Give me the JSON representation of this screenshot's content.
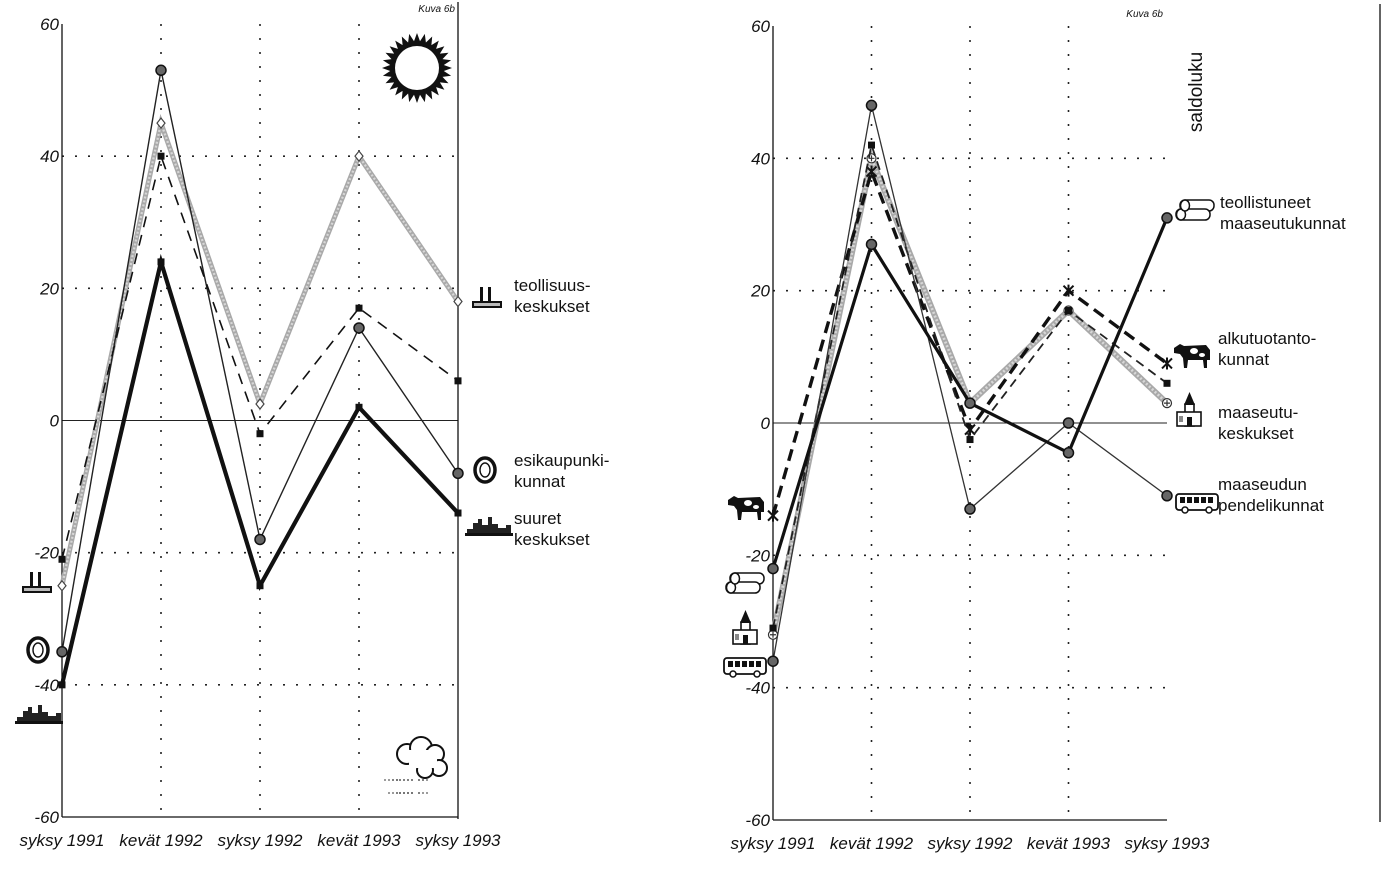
{
  "chart_data": [
    {
      "type": "line",
      "figure_tag": "Kuva 6b",
      "categories": [
        "syksy 1991",
        "kevät 1992",
        "syksy 1992",
        "kevät 1993",
        "syksy 1993"
      ],
      "y_ticks": [
        "60",
        "40",
        "20",
        "0",
        "-20",
        "-40",
        "-60"
      ],
      "ylim": [
        -60,
        60
      ],
      "grid": "dotted",
      "ylabel": "",
      "series": [
        {
          "key": "teollisuus",
          "values": [
            -25,
            45,
            2.5,
            40,
            18
          ],
          "color": "#9a9a9a"
        },
        {
          "key": "esikaupunki",
          "values": [
            -35,
            53,
            -18,
            14,
            -8
          ],
          "color": "#222222"
        },
        {
          "key": "suuret",
          "values": [
            -40,
            24,
            -25,
            2,
            -14
          ],
          "color": "#111111"
        },
        {
          "key": "dashed",
          "values": [
            -21,
            40,
            -2,
            17,
            6
          ],
          "color": "#111111"
        }
      ],
      "labels": [
        {
          "key": "teollisuus",
          "lines": [
            "teollisuus-",
            "keskukset"
          ]
        },
        {
          "key": "esikaupunki",
          "lines": [
            "esikaupunki-",
            "kunnat"
          ]
        },
        {
          "key": "suuret",
          "lines": [
            "suuret",
            "keskukset"
          ]
        }
      ],
      "icons": [
        "sun-icon",
        "rain-cloud-icon",
        "factory-icon",
        "ring-icon",
        "skyline-icon"
      ]
    },
    {
      "type": "line",
      "figure_tag": "Kuva 6b",
      "categories": [
        "syksy 1991",
        "kevät 1992",
        "syksy 1992",
        "kevät 1993",
        "syksy 1993"
      ],
      "y_ticks": [
        "60",
        "40",
        "20",
        "0",
        "-20",
        "-40",
        "-60"
      ],
      "ylim": [
        -60,
        60
      ],
      "grid": "dotted",
      "ylabel": "saldoluku",
      "series": [
        {
          "key": "teollistuneet",
          "values": [
            -32,
            40,
            3,
            17,
            3
          ],
          "color": "#9a9a9a"
        },
        {
          "key": "alkutuotanto",
          "values": [
            -14,
            38,
            -1,
            20,
            9
          ],
          "color": "#111111"
        },
        {
          "key": "maaseutukeskukset",
          "values": [
            -31,
            42,
            -2.5,
            17,
            6
          ],
          "color": "#333333"
        },
        {
          "key": "pendeli",
          "values": [
            -36,
            48,
            -13,
            0,
            -11
          ],
          "color": "#333333"
        },
        {
          "key": "bold",
          "values": [
            -22,
            27,
            3,
            -4.5,
            31
          ],
          "color": "#111111"
        }
      ],
      "labels": [
        {
          "key": "teollistuneet",
          "lines": [
            "teollistuneet",
            "maaseutukunnat"
          ]
        },
        {
          "key": "alkutuotanto",
          "lines": [
            "alkutuotanto-",
            "kunnat"
          ]
        },
        {
          "key": "maaseutukeskukset",
          "lines": [
            "maaseutu-",
            "keskukset"
          ]
        },
        {
          "key": "pendeli",
          "lines": [
            "maaseudun",
            "pendelikunnat"
          ]
        }
      ],
      "icons": [
        "logs-icon",
        "cow-icon",
        "church-icon",
        "bus-icon"
      ]
    }
  ]
}
